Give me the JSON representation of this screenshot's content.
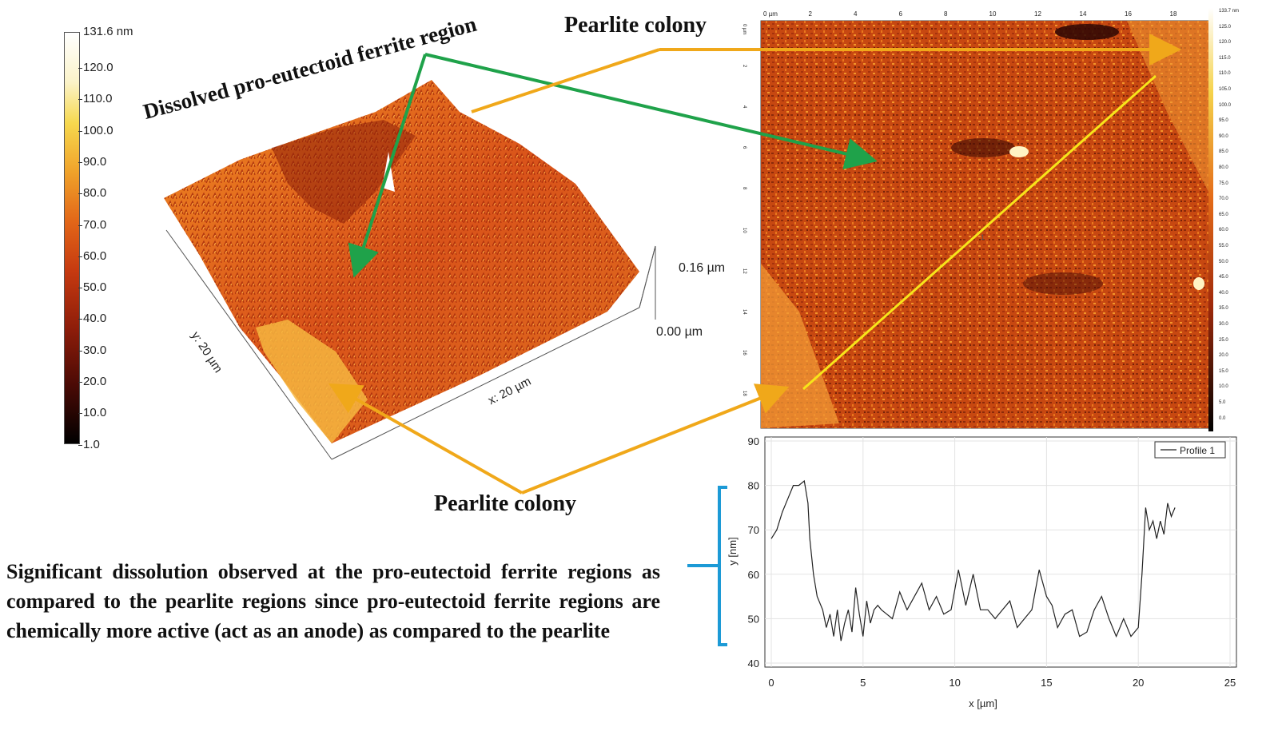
{
  "colorbar": {
    "max_label": "131.6 nm",
    "ticks": [
      "120.0",
      "110.0",
      "100.0",
      "90.0",
      "80.0",
      "70.0",
      "60.0",
      "50.0",
      "40.0",
      "30.0",
      "20.0",
      "10.0",
      "1.0"
    ]
  },
  "surface3d": {
    "z_top": "0.16 µm",
    "z_bottom": "0.00 µm",
    "x_axis": "x: 20 µm",
    "y_axis": "y: 20 µm"
  },
  "annotations": {
    "dissolved_ferrite": "Dissolved pro-eutectoid ferrite region",
    "pearlite_top": "Pearlite colony",
    "pearlite_bottom": "Pearlite colony"
  },
  "afm_map": {
    "top_ticks": [
      "0 µm",
      "2",
      "4",
      "6",
      "8",
      "10",
      "12",
      "14",
      "16",
      "18"
    ],
    "left_ticks": [
      "0 µm",
      "2",
      "4",
      "6",
      "8",
      "10",
      "12",
      "14",
      "16",
      "18"
    ],
    "right_ticks": [
      "133.7 nm",
      "125.0",
      "120.0",
      "115.0",
      "110.0",
      "105.0",
      "100.0",
      "95.0",
      "90.0",
      "85.0",
      "80.0",
      "75.0",
      "70.0",
      "65.0",
      "60.0",
      "55.0",
      "50.0",
      "45.0",
      "40.0",
      "35.0",
      "30.0",
      "25.0",
      "20.0",
      "15.0",
      "10.0",
      "5.0",
      "0.0"
    ],
    "profile_marker": "1"
  },
  "paragraph": "Significant dissolution observed at the pro-eutectoid ferrite regions as compared to the pearlite regions since pro-eutectoid ferrite regions are chemically more active (act as an anode) as compared to the pearlite",
  "chart_data": {
    "type": "line",
    "legend": "Profile 1",
    "xlabel": "x [µm]",
    "ylabel": "y [nm]",
    "xlim": [
      0,
      25
    ],
    "ylim": [
      40,
      90
    ],
    "x_ticks": [
      "0",
      "5",
      "10",
      "15",
      "20",
      "25"
    ],
    "y_ticks": [
      "40",
      "50",
      "60",
      "70",
      "80",
      "90"
    ],
    "series": [
      {
        "name": "Profile 1",
        "x": [
          0,
          0.3,
          0.6,
          0.9,
          1.2,
          1.5,
          1.8,
          2.0,
          2.1,
          2.3,
          2.5,
          2.8,
          3.0,
          3.2,
          3.4,
          3.6,
          3.8,
          4.0,
          4.2,
          4.4,
          4.6,
          4.8,
          5.0,
          5.2,
          5.4,
          5.6,
          5.8,
          6.0,
          6.3,
          6.6,
          7.0,
          7.4,
          7.8,
          8.2,
          8.6,
          9.0,
          9.4,
          9.8,
          10.2,
          10.6,
          11.0,
          11.4,
          11.8,
          12.2,
          12.6,
          13.0,
          13.4,
          13.8,
          14.2,
          14.6,
          15.0,
          15.3,
          15.6,
          16.0,
          16.4,
          16.8,
          17.2,
          17.6,
          18.0,
          18.4,
          18.8,
          19.2,
          19.6,
          20.0,
          20.2,
          20.4,
          20.6,
          20.8,
          21.0,
          21.2,
          21.4,
          21.6,
          21.8,
          22.0
        ],
        "values": [
          68,
          70,
          74,
          77,
          80,
          80,
          81,
          76,
          68,
          60,
          55,
          52,
          48,
          51,
          46,
          52,
          45,
          49,
          52,
          47,
          57,
          51,
          46,
          54,
          49,
          52,
          53,
          52,
          51,
          50,
          56,
          52,
          55,
          58,
          52,
          55,
          51,
          52,
          61,
          53,
          60,
          52,
          52,
          50,
          52,
          54,
          48,
          50,
          52,
          61,
          55,
          53,
          48,
          51,
          52,
          46,
          47,
          52,
          55,
          50,
          46,
          50,
          46,
          48,
          60,
          75,
          70,
          72,
          68,
          72,
          69,
          76,
          73,
          75
        ]
      }
    ]
  }
}
